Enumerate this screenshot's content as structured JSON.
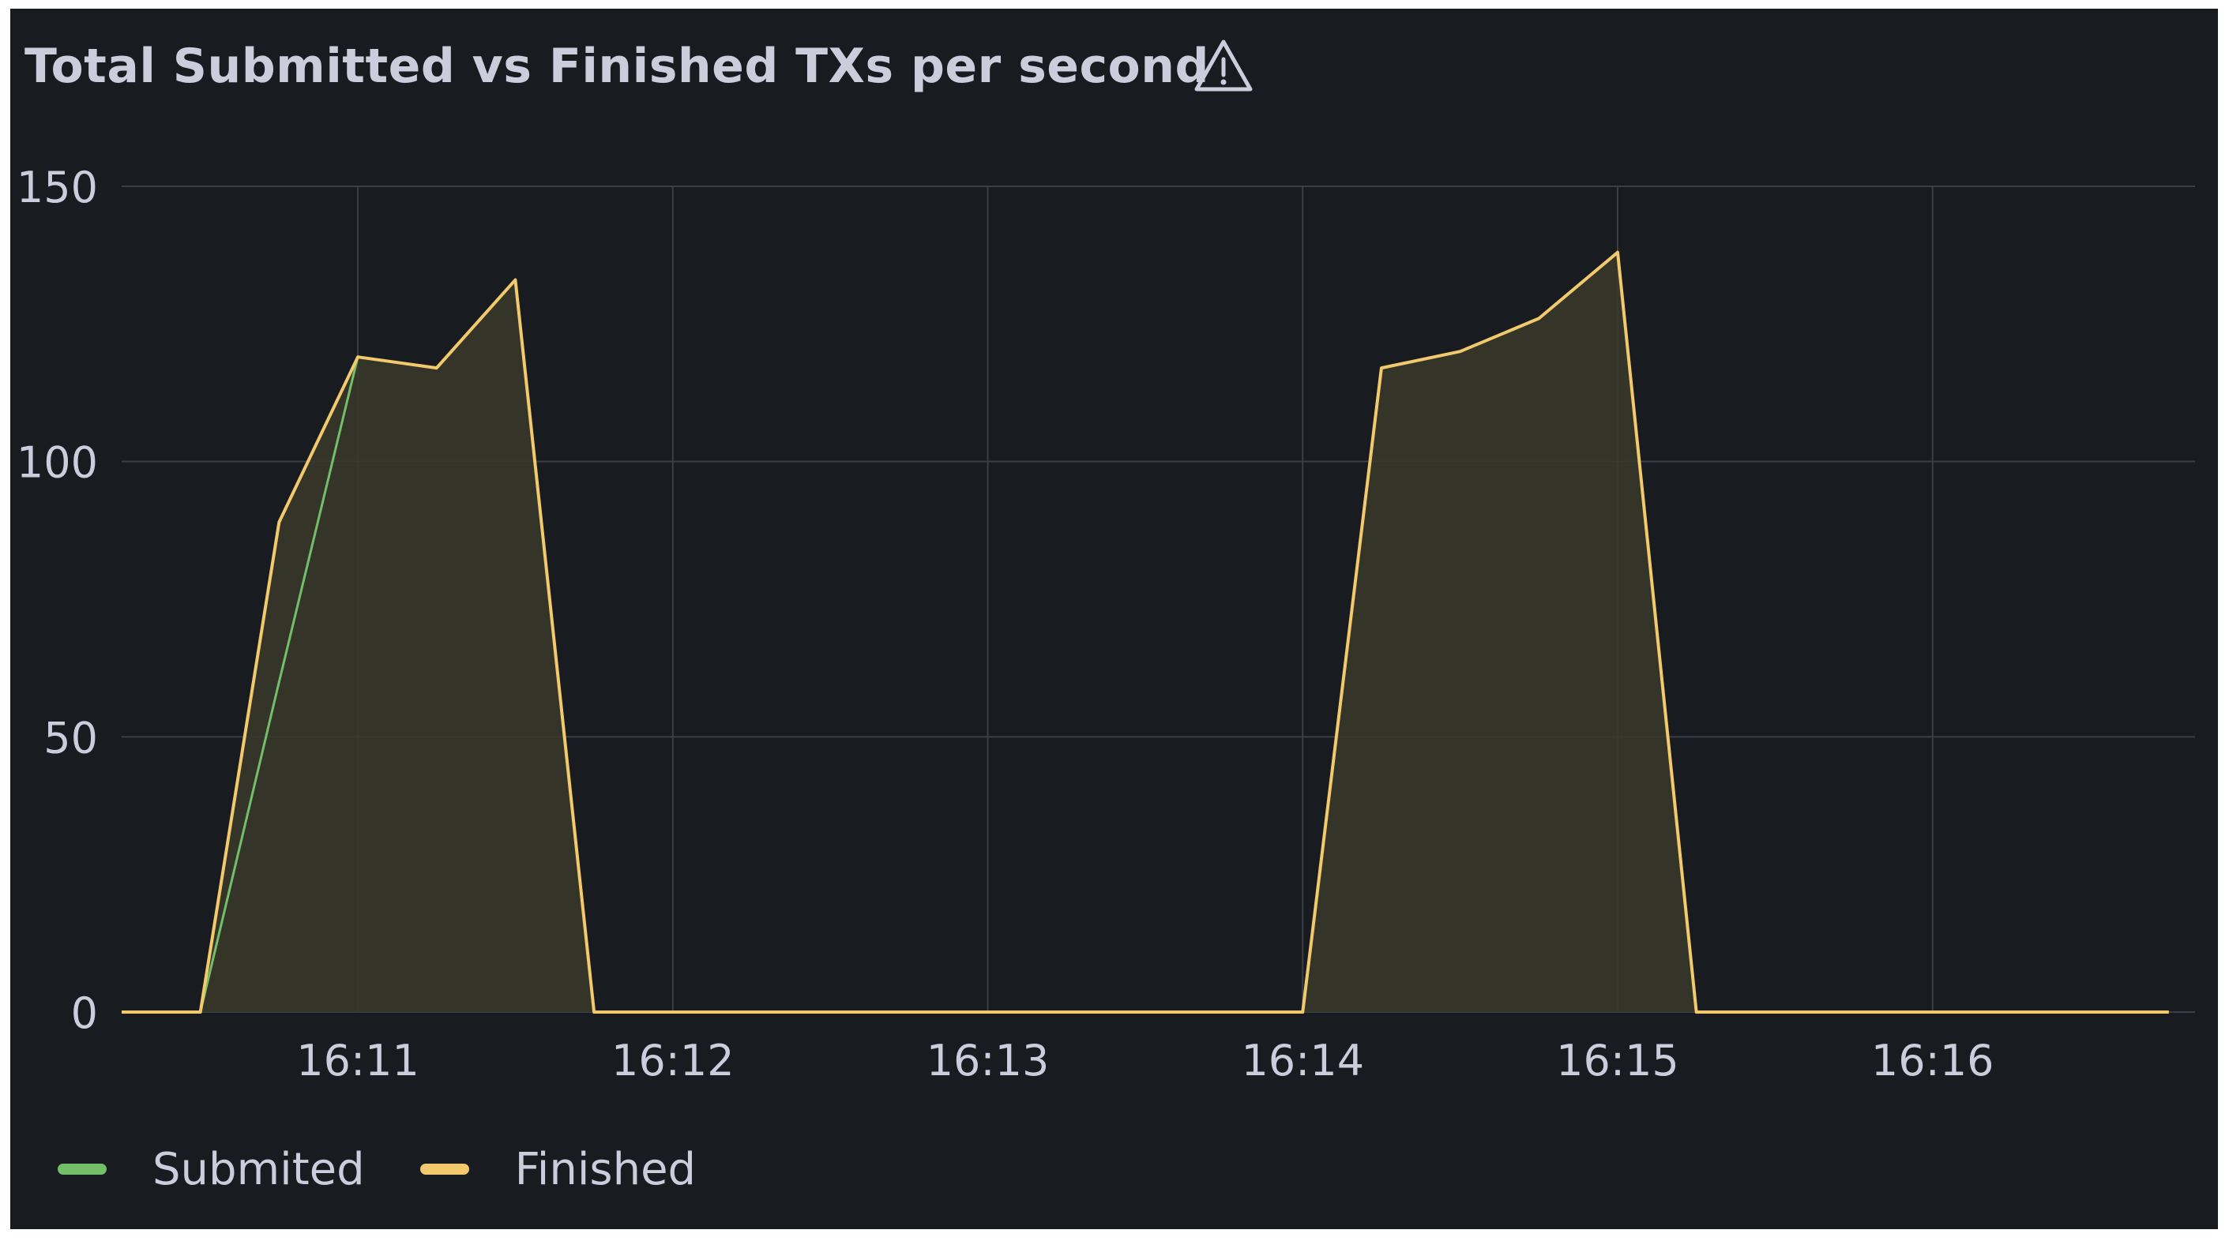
{
  "panel": {
    "title": "Total Submitted vs Finished TXs per second",
    "warning_icon": "warning-triangle-icon"
  },
  "colors": {
    "background": "#181b1f",
    "grid": "#3b3e45",
    "text": "#ccccdc",
    "submitted": "#73bf69",
    "finished": "#f2c96d",
    "fill": "#3a3a2a"
  },
  "chart_data": {
    "type": "area",
    "title": "Total Submitted vs Finished TXs per second",
    "xlabel": "",
    "ylabel": "",
    "ylim": [
      0,
      150
    ],
    "y_ticks": [
      "0",
      "50",
      "100",
      "150"
    ],
    "x_ticks": [
      "16:11",
      "16:12",
      "16:13",
      "16:14",
      "16:15",
      "16:16"
    ],
    "x_range": [
      "16:10:30",
      "16:16:45"
    ],
    "grid": true,
    "legend_position": "bottom-left",
    "series": [
      {
        "name": "Submited",
        "x": [
          "16:10:30",
          "16:10:45",
          "16:11:00",
          "16:11:15",
          "16:11:30",
          "16:11:45",
          "16:12:00",
          "16:13:00",
          "16:14:00",
          "16:14:15",
          "16:14:30",
          "16:14:45",
          "16:15:00",
          "16:15:15",
          "16:16:00",
          "16:16:45"
        ],
        "values": [
          0,
          60,
          119,
          117,
          133,
          0,
          0,
          0,
          0,
          117,
          120,
          126,
          138,
          0,
          0,
          0
        ]
      },
      {
        "name": "Finished",
        "x": [
          "16:10:30",
          "16:10:45",
          "16:11:00",
          "16:11:15",
          "16:11:30",
          "16:11:45",
          "16:12:00",
          "16:13:00",
          "16:14:00",
          "16:14:15",
          "16:14:30",
          "16:14:45",
          "16:15:00",
          "16:15:15",
          "16:16:00",
          "16:16:45"
        ],
        "values": [
          0,
          89,
          119,
          117,
          133,
          0,
          0,
          0,
          0,
          117,
          120,
          126,
          138,
          0,
          0,
          0
        ]
      }
    ],
    "leading_x": "16:10:15",
    "leading_value": 0
  }
}
